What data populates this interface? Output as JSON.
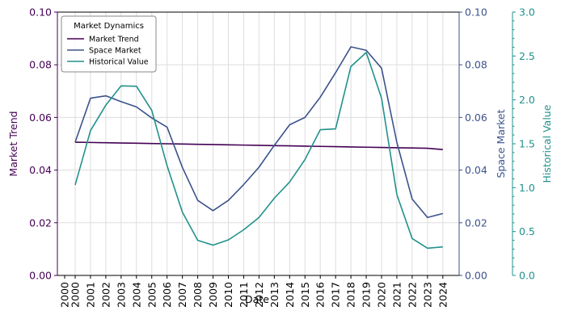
{
  "chart_data": {
    "type": "line",
    "xlabel": "Date",
    "x": [
      2000,
      2001,
      2002,
      2003,
      2004,
      2005,
      2006,
      2007,
      2008,
      2009,
      2010,
      2011,
      2012,
      2013,
      2014,
      2015,
      2016,
      2017,
      2018,
      2019,
      2020,
      2021,
      2022,
      2023,
      2024
    ],
    "xticks": [
      "2000",
      "2001",
      "2002",
      "2003",
      "2004",
      "2005",
      "2006",
      "2007",
      "2008",
      "2009",
      "2010",
      "2011",
      "2012",
      "2013",
      "2014",
      "2015",
      "2016",
      "2017",
      "2018",
      "2019",
      "2020",
      "2021",
      "2022",
      "2023",
      "2024"
    ],
    "x_extra_tick": "2000",
    "axes": {
      "left": {
        "label": "Market Trend",
        "ylim": [
          0,
          0.1
        ],
        "ticks": [
          "0.00",
          "0.02",
          "0.04",
          "0.06",
          "0.08",
          "0.10"
        ],
        "color": "#440154"
      },
      "right1": {
        "label": "Space Market",
        "ylim": [
          0,
          0.1
        ],
        "ticks": [
          "0.00",
          "0.02",
          "0.04",
          "0.06",
          "0.08",
          "0.10"
        ],
        "color": "#3b528b"
      },
      "right2": {
        "label": "Historical Value",
        "ylim": [
          0,
          3.0
        ],
        "ticks": [
          "0.0",
          "0.5",
          "1.0",
          "1.5",
          "2.0",
          "2.5",
          "3.0"
        ],
        "color": "#21918c"
      }
    },
    "series": [
      {
        "name": "Market Trend",
        "axis": "left",
        "color": "#440154",
        "values": [
          0.0506,
          0.0505,
          0.0504,
          0.0503,
          0.0502,
          0.0501,
          0.05,
          0.0499,
          0.0498,
          0.0497,
          0.0496,
          0.0495,
          0.0494,
          0.0493,
          0.0492,
          0.0491,
          0.049,
          0.0489,
          0.0488,
          0.0487,
          0.0486,
          0.0485,
          0.0484,
          0.0483,
          0.0478
        ]
      },
      {
        "name": "Space Market",
        "axis": "right1",
        "color": "#3b528b",
        "values": [
          0.0506,
          0.0673,
          0.0682,
          0.066,
          0.064,
          0.0598,
          0.0563,
          0.041,
          0.0285,
          0.0246,
          0.0285,
          0.0345,
          0.0411,
          0.0494,
          0.0572,
          0.06,
          0.0677,
          0.077,
          0.0868,
          0.0855,
          0.0787,
          0.0505,
          0.029,
          0.022,
          0.0235
        ]
      },
      {
        "name": "Historical Value",
        "axis": "right2",
        "color": "#21918c",
        "values": [
          1.03,
          1.65,
          1.94,
          2.16,
          2.155,
          1.88,
          1.25,
          0.72,
          0.4,
          0.345,
          0.405,
          0.52,
          0.66,
          0.88,
          1.065,
          1.32,
          1.66,
          1.67,
          2.38,
          2.54,
          2.02,
          0.92,
          0.42,
          0.31,
          0.325
        ]
      }
    ],
    "legend": {
      "title": "Market Dynamics",
      "placement": "top-left",
      "entries": [
        "Market Trend",
        "Space Market",
        "Historical Value"
      ]
    },
    "grid": true
  }
}
